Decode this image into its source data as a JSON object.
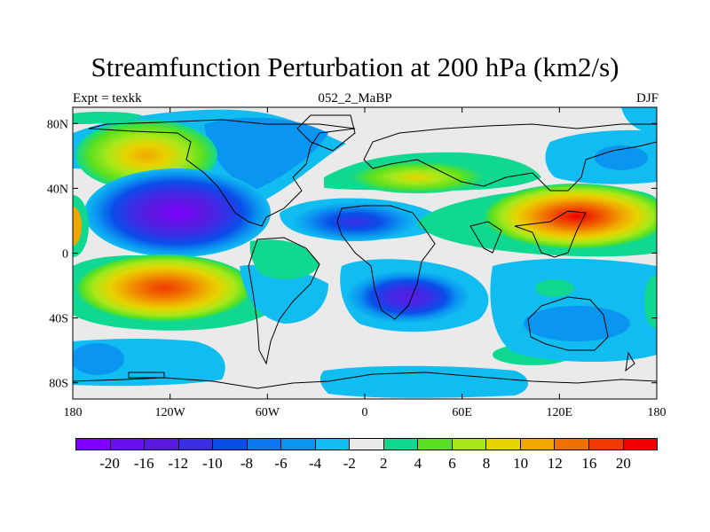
{
  "title": "Streamfunction Perturbation at 200 hPa (km2/s)",
  "subtitle_left": "Expt = texkk",
  "subtitle_center": "052_2_MaBP",
  "subtitle_right": "DJF",
  "lat_ticks": [
    "80N",
    "40N",
    "0",
    "40S",
    "80S"
  ],
  "lon_ticks": [
    "180",
    "120W",
    "60W",
    "0",
    "60E",
    "120E",
    "180"
  ],
  "colorbar": {
    "colors": [
      "#7f00ff",
      "#6a0ff0",
      "#5a19e0",
      "#3a2de6",
      "#0a4ee8",
      "#0a78f0",
      "#0a96f0",
      "#10bcf0",
      "#eaeaea",
      "#10d890",
      "#5ae020",
      "#a8e81a",
      "#e6d400",
      "#f0a800",
      "#f07000",
      "#f03a00",
      "#f00000"
    ],
    "labels": [
      "-20",
      "-16",
      "-12",
      "-10",
      "-8",
      "-6",
      "-4",
      "-2",
      "2",
      "4",
      "6",
      "8",
      "10",
      "12",
      "16",
      "20"
    ]
  },
  "map_data": {
    "type": "filled-contour",
    "projection": "cylindrical-equidistant",
    "lon_range": [
      -180,
      180
    ],
    "lat_range": [
      -90,
      90
    ],
    "field": "streamfunction perturbation",
    "level_hpa": 200,
    "units": "km2/s",
    "features": [
      {
        "name": "North Pacific anticyclone",
        "lon": -138,
        "lat": 57,
        "value": 10
      },
      {
        "name": "Eastern Pacific cyclone",
        "lon": -118,
        "lat": 27,
        "value": -20
      },
      {
        "name": "South Pacific anticyclone",
        "lon": -118,
        "lat": -22,
        "value": 16
      },
      {
        "name": "North Africa cyclone",
        "lon": -2,
        "lat": 20,
        "value": -16
      },
      {
        "name": "Southern Africa cyclone",
        "lon": 30,
        "lat": -30,
        "value": -16
      },
      {
        "name": "West Pacific anticyclone",
        "lon": 140,
        "lat": 25,
        "value": 20
      }
    ]
  }
}
